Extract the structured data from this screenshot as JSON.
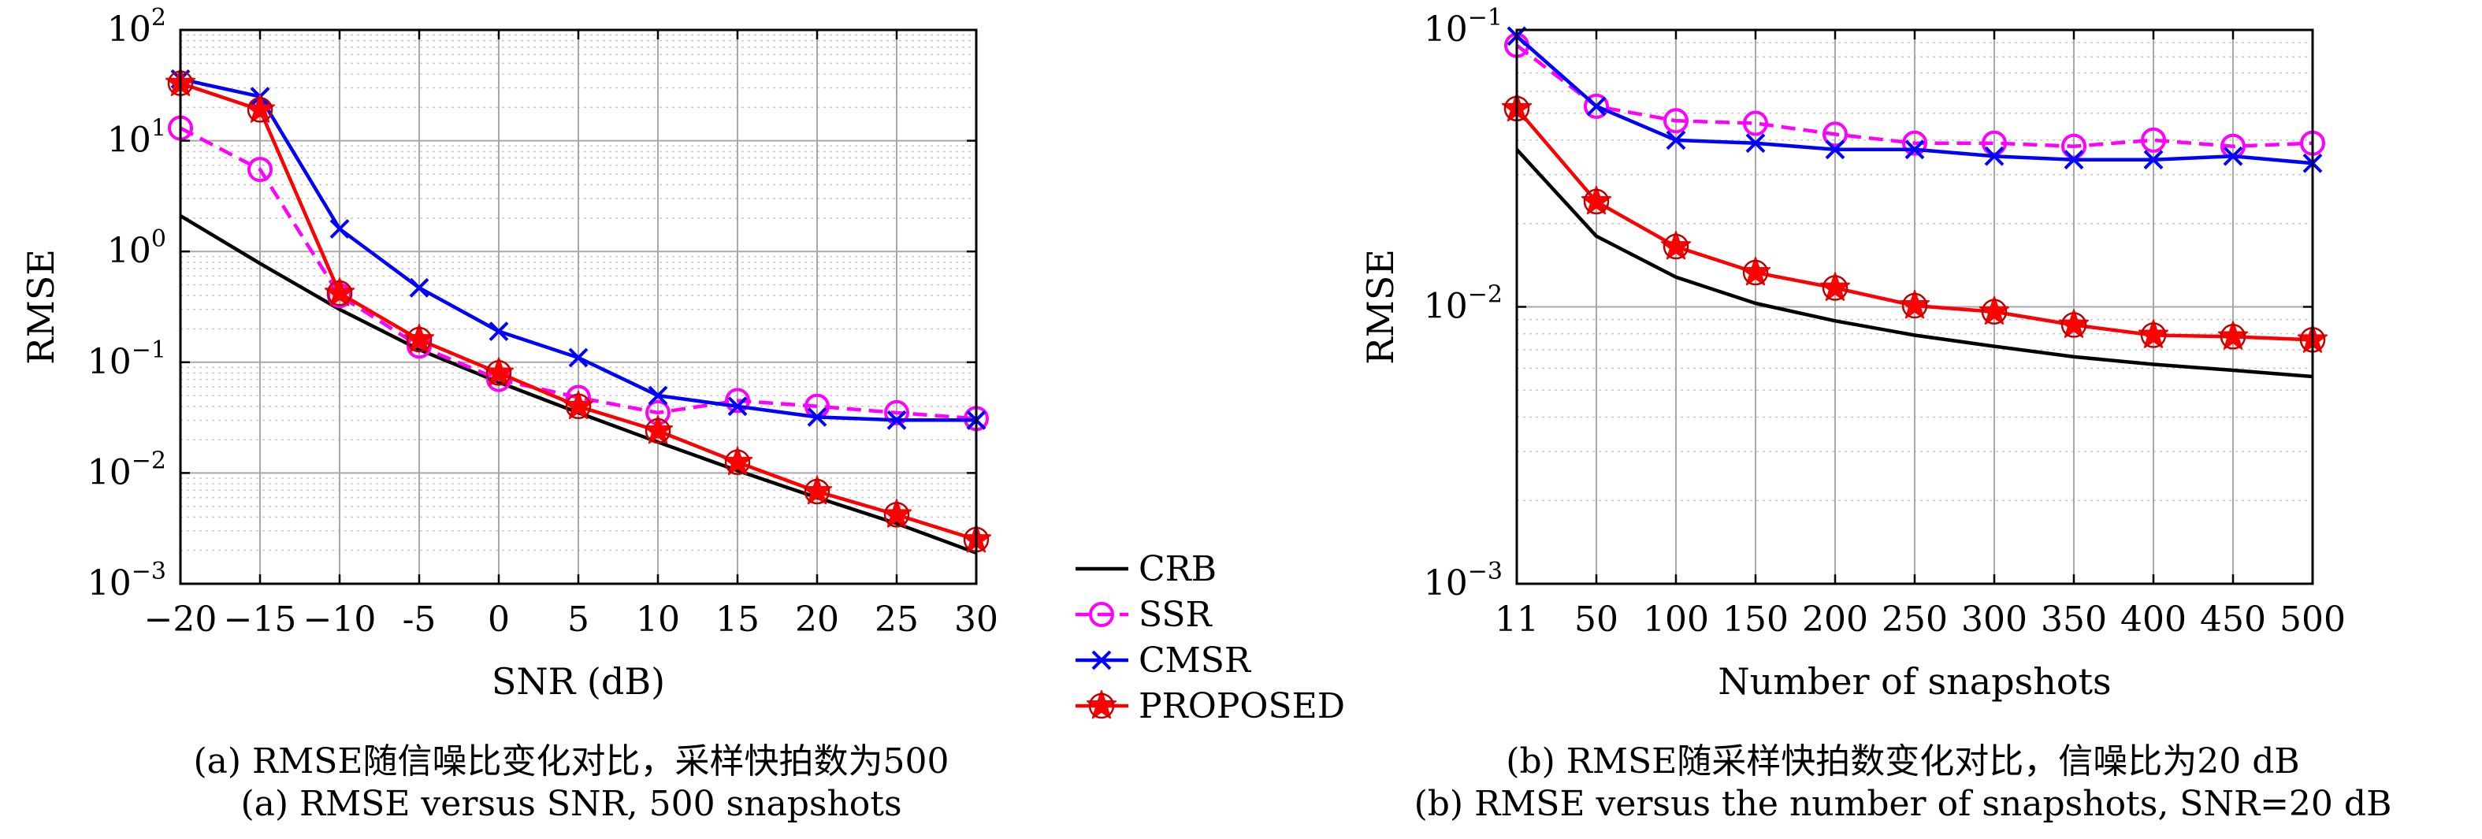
{
  "colors": {
    "CRB": "#000000",
    "SSR": "#ff00ff",
    "CMSR": "#0000ff",
    "PROPOSED": "#ff0000",
    "grid": "#c8c8c8",
    "axis": "#000000"
  },
  "legend": {
    "entries": [
      "CRB",
      "SSR",
      "CMSR",
      "PROPOSED"
    ],
    "placement": "between-panels"
  },
  "captions": {
    "a_cn": "(a) RMSE随信噪比变化对比，采样快拍数为500",
    "a_en": "(a) RMSE versus SNR, 500 snapshots",
    "b_cn": "(b) RMSE随采样快拍数变化对比，信噪比为20 dB",
    "b_en": "(b) RMSE versus the number of snapshots, SNR=20 dB"
  },
  "chart_data": [
    {
      "type": "line",
      "xlabel": "SNR (dB)",
      "ylabel": "RMSE",
      "yscale": "log",
      "ylim": [
        0.001,
        100
      ],
      "xlim": [
        -20,
        30
      ],
      "x": [
        -20,
        -15,
        -10,
        -5,
        0,
        5,
        10,
        15,
        20,
        25,
        30
      ],
      "xtick_labels": [
        "−20",
        "−15",
        "−10",
        "-5",
        "0",
        "5",
        "10",
        "15",
        "20",
        "25",
        "30"
      ],
      "ytick_exponents": [
        -3,
        -2,
        -1,
        0,
        1,
        2
      ],
      "grid": true,
      "series": [
        {
          "name": "CRB",
          "style": "solid",
          "marker": "none",
          "values": [
            2.1,
            0.78,
            0.3,
            0.13,
            0.066,
            0.035,
            0.019,
            0.0105,
            0.006,
            0.0035,
            0.0019
          ]
        },
        {
          "name": "SSR",
          "style": "dashed",
          "marker": "circle",
          "values": [
            13,
            5.5,
            0.4,
            0.14,
            0.07,
            0.048,
            0.035,
            0.045,
            0.04,
            0.035,
            0.031
          ]
        },
        {
          "name": "CMSR",
          "style": "solid",
          "marker": "x",
          "values": [
            36,
            25,
            1.6,
            0.47,
            0.19,
            0.11,
            0.05,
            0.04,
            0.032,
            0.03,
            0.03
          ]
        },
        {
          "name": "PROPOSED",
          "style": "solid",
          "marker": "star",
          "values": [
            33,
            19,
            0.42,
            0.16,
            0.08,
            0.04,
            0.024,
            0.0125,
            0.0068,
            0.0042,
            0.0025
          ]
        }
      ]
    },
    {
      "type": "line",
      "xlabel": "Number of snapshots",
      "ylabel": "RMSE",
      "yscale": "log",
      "ylim": [
        0.001,
        0.1
      ],
      "categories": [
        "11",
        "50",
        "100",
        "150",
        "200",
        "250",
        "300",
        "350",
        "400",
        "450",
        "500"
      ],
      "ytick_exponents": [
        -3,
        -2,
        -1
      ],
      "grid": true,
      "series": [
        {
          "name": "CRB",
          "style": "solid",
          "marker": "none",
          "values": [
            0.037,
            0.018,
            0.0128,
            0.0103,
            0.0089,
            0.0079,
            0.0072,
            0.0066,
            0.0062,
            0.0059,
            0.0056
          ]
        },
        {
          "name": "SSR",
          "style": "dashed",
          "marker": "circle",
          "values": [
            0.088,
            0.053,
            0.047,
            0.046,
            0.042,
            0.039,
            0.039,
            0.038,
            0.04,
            0.038,
            0.039
          ]
        },
        {
          "name": "CMSR",
          "style": "solid",
          "marker": "x",
          "values": [
            0.095,
            0.053,
            0.04,
            0.039,
            0.037,
            0.037,
            0.035,
            0.034,
            0.034,
            0.035,
            0.033
          ]
        },
        {
          "name": "PROPOSED",
          "style": "solid",
          "marker": "star",
          "values": [
            0.052,
            0.024,
            0.0165,
            0.0133,
            0.0117,
            0.0101,
            0.0096,
            0.0086,
            0.0079,
            0.0078,
            0.0076
          ]
        }
      ]
    }
  ]
}
